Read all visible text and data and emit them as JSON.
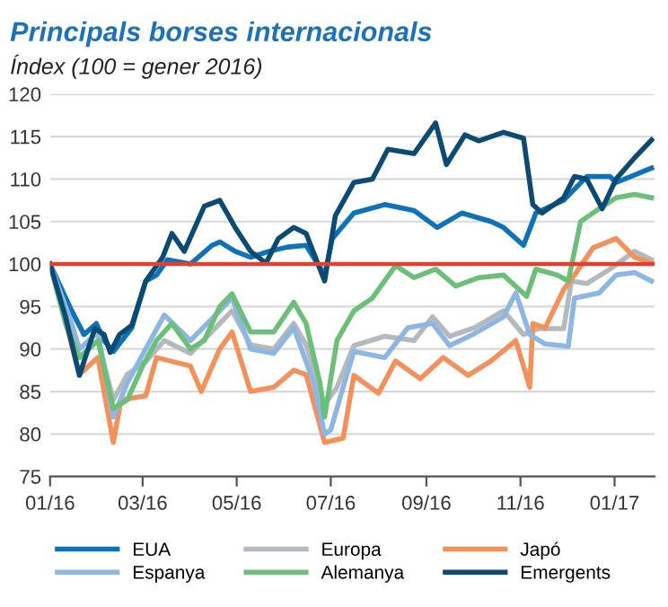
{
  "chart_data": {
    "type": "line",
    "title": "Principals borses internacionals",
    "subtitle": "Índex (100 = gener 2016)",
    "xlim": [
      "2016-01-01",
      "2017-01-27"
    ],
    "xticks": [
      {
        "value": "2016-01-01",
        "label": "01/16"
      },
      {
        "value": "2016-03-01",
        "label": "03/16"
      },
      {
        "value": "2016-05-01",
        "label": "05/16"
      },
      {
        "value": "2016-07-01",
        "label": "07/16"
      },
      {
        "value": "2016-09-01",
        "label": "09/16"
      },
      {
        "value": "2016-11-01",
        "label": "11/16"
      },
      {
        "value": "2017-01-01",
        "label": "01/17"
      }
    ],
    "ylim": [
      75,
      120
    ],
    "yticks": [
      75,
      80,
      85,
      90,
      95,
      100,
      105,
      110,
      115,
      120
    ],
    "grid": "y",
    "legend": "bottom",
    "marker": "none",
    "line_style": "solid",
    "ref_lines": [
      {
        "axis": "y",
        "value": 100,
        "color": "#e2412f"
      }
    ],
    "series": [
      {
        "name": "EUA",
        "color": "#0f72b9",
        "x": [
          "2016-01-01",
          "2016-01-15",
          "2016-01-23",
          "2016-01-31",
          "2016-02-05",
          "2016-02-11",
          "2016-02-23",
          "2016-03-03",
          "2016-03-10",
          "2016-03-17",
          "2016-04-01",
          "2016-04-15",
          "2016-04-20",
          "2016-04-30",
          "2016-05-10",
          "2016-05-22",
          "2016-06-03",
          "2016-06-15",
          "2016-06-27",
          "2016-07-02",
          "2016-07-16",
          "2016-08-05",
          "2016-08-24",
          "2016-09-08",
          "2016-09-24",
          "2016-10-13",
          "2016-10-21",
          "2016-11-03",
          "2016-11-11",
          "2016-11-29",
          "2016-12-14",
          "2016-12-29",
          "2017-01-02",
          "2017-01-25"
        ],
        "values": [
          100,
          94.5,
          91.7,
          93,
          91,
          89.7,
          92.5,
          98,
          98.7,
          100.5,
          100,
          102.2,
          102.6,
          101.5,
          100.8,
          101.5,
          102,
          102.2,
          98.7,
          103,
          106,
          107,
          106.3,
          104.3,
          106,
          105,
          104.3,
          102.2,
          106,
          107.5,
          110.3,
          110.3,
          109.6,
          111.3
        ]
      },
      {
        "name": "Europa",
        "color": "#b3b9bd",
        "x": [
          "2016-01-01",
          "2016-01-15",
          "2016-01-20",
          "2016-02-01",
          "2016-02-11",
          "2016-02-20",
          "2016-03-03",
          "2016-03-15",
          "2016-04-01",
          "2016-04-20",
          "2016-04-28",
          "2016-05-10",
          "2016-05-25",
          "2016-06-07",
          "2016-06-15",
          "2016-06-27",
          "2016-07-05",
          "2016-07-16",
          "2016-08-05",
          "2016-08-24",
          "2016-09-05",
          "2016-09-16",
          "2016-10-02",
          "2016-10-21",
          "2016-11-03",
          "2016-11-13",
          "2016-11-29",
          "2016-12-04",
          "2016-12-14",
          "2016-12-29",
          "2017-01-14",
          "2017-01-25"
        ],
        "values": [
          100,
          92,
          89,
          91,
          84,
          87,
          88.5,
          91,
          89.5,
          93,
          94.5,
          90.5,
          90,
          93,
          90.5,
          83.5,
          85.5,
          90.4,
          91.5,
          91,
          93.8,
          91.5,
          92.5,
          94.5,
          91.7,
          92.4,
          92.4,
          98,
          97.7,
          99.4,
          101.5,
          100.5
        ]
      },
      {
        "name": "Japó",
        "color": "#f4915b",
        "x": [
          "2016-01-01",
          "2016-01-20",
          "2016-02-01",
          "2016-02-11",
          "2016-02-16",
          "2016-03-03",
          "2016-03-10",
          "2016-04-01",
          "2016-04-08",
          "2016-04-20",
          "2016-04-28",
          "2016-05-10",
          "2016-05-25",
          "2016-06-07",
          "2016-06-15",
          "2016-06-27",
          "2016-07-09",
          "2016-07-16",
          "2016-08-01",
          "2016-08-12",
          "2016-08-28",
          "2016-09-12",
          "2016-09-28",
          "2016-10-13",
          "2016-10-29",
          "2016-11-07",
          "2016-11-09",
          "2016-11-17",
          "2016-11-29",
          "2016-12-06",
          "2016-12-18",
          "2017-01-02",
          "2017-01-14",
          "2017-01-25"
        ],
        "values": [
          100,
          87,
          89,
          79,
          84,
          84.5,
          89,
          88,
          85,
          90,
          92,
          85,
          85.5,
          87.5,
          87,
          79,
          79.5,
          86.9,
          84.8,
          88.6,
          86.5,
          89,
          86.9,
          88.6,
          91,
          85.5,
          93,
          92.5,
          97,
          98.7,
          101.9,
          103,
          100.8,
          100.1
        ]
      },
      {
        "name": "Espanya",
        "color": "#8db6e2",
        "x": [
          "2016-01-01",
          "2016-01-15",
          "2016-01-20",
          "2016-02-01",
          "2016-02-11",
          "2016-02-20",
          "2016-03-03",
          "2016-03-15",
          "2016-04-01",
          "2016-04-20",
          "2016-04-28",
          "2016-05-10",
          "2016-05-25",
          "2016-06-07",
          "2016-06-20",
          "2016-06-27",
          "2016-07-01",
          "2016-07-09",
          "2016-07-16",
          "2016-08-05",
          "2016-08-20",
          "2016-09-05",
          "2016-09-16",
          "2016-10-02",
          "2016-10-21",
          "2016-10-29",
          "2016-11-07",
          "2016-11-17",
          "2016-12-02",
          "2016-12-06",
          "2016-12-22",
          "2017-01-02",
          "2017-01-14",
          "2017-01-25"
        ],
        "values": [
          100,
          93,
          90,
          92,
          82,
          86,
          90,
          94,
          91,
          94.5,
          96,
          90,
          89.5,
          92.5,
          86,
          80,
          80.5,
          85.5,
          89.7,
          89,
          92.5,
          93,
          90.4,
          91.8,
          93.8,
          96.6,
          91.7,
          90.6,
          90.3,
          96,
          96.6,
          98.7,
          99,
          98
        ]
      },
      {
        "name": "Alemanya",
        "color": "#6bbf78",
        "x": [
          "2016-01-01",
          "2016-01-11",
          "2016-01-20",
          "2016-02-01",
          "2016-02-11",
          "2016-02-20",
          "2016-03-01",
          "2016-03-10",
          "2016-03-20",
          "2016-04-01",
          "2016-04-10",
          "2016-04-20",
          "2016-04-28",
          "2016-05-10",
          "2016-05-25",
          "2016-06-07",
          "2016-06-15",
          "2016-06-24",
          "2016-06-27",
          "2016-07-05",
          "2016-07-16",
          "2016-07-28",
          "2016-08-12",
          "2016-08-24",
          "2016-09-07",
          "2016-09-20",
          "2016-10-05",
          "2016-10-21",
          "2016-11-05",
          "2016-11-11",
          "2016-11-25",
          "2016-12-02",
          "2016-12-10",
          "2016-12-22",
          "2017-01-02",
          "2017-01-14",
          "2017-01-25"
        ],
        "values": [
          100,
          93,
          89,
          91,
          83,
          84,
          88,
          91,
          93,
          90,
          91,
          95,
          96.5,
          92,
          92,
          95.5,
          93,
          86,
          82,
          91,
          94.5,
          96,
          99.8,
          98.4,
          99.4,
          97.4,
          98.4,
          98.7,
          96.2,
          99.4,
          98.7,
          98,
          105,
          106.5,
          107.8,
          108.2,
          107.8
        ]
      },
      {
        "name": "Emergents",
        "color": "#0b4a73",
        "x": [
          "2016-01-01",
          "2016-01-11",
          "2016-01-20",
          "2016-01-30",
          "2016-02-05",
          "2016-02-09",
          "2016-02-15",
          "2016-02-23",
          "2016-03-03",
          "2016-03-14",
          "2016-03-20",
          "2016-03-28",
          "2016-04-10",
          "2016-04-20",
          "2016-04-30",
          "2016-05-10",
          "2016-05-20",
          "2016-05-28",
          "2016-06-07",
          "2016-06-15",
          "2016-06-27",
          "2016-07-04",
          "2016-07-16",
          "2016-07-28",
          "2016-08-07",
          "2016-08-24",
          "2016-09-07",
          "2016-09-14",
          "2016-09-26",
          "2016-10-05",
          "2016-10-21",
          "2016-11-03",
          "2016-11-09",
          "2016-11-15",
          "2016-11-29",
          "2016-12-06",
          "2016-12-14",
          "2016-12-24",
          "2017-01-02",
          "2017-01-14",
          "2017-01-25"
        ],
        "values": [
          100,
          93.8,
          86.9,
          92.4,
          91.7,
          89.6,
          91.7,
          92.8,
          98,
          100.8,
          103.6,
          101.5,
          106.8,
          107.5,
          104.3,
          101.5,
          100.1,
          103,
          104.3,
          103.6,
          98,
          105.7,
          109.6,
          110,
          113.5,
          113,
          116.6,
          111.7,
          115.2,
          114.5,
          115.5,
          114.8,
          107,
          106,
          107.8,
          110.3,
          110,
          106.5,
          110,
          112.5,
          114.6
        ]
      }
    ]
  }
}
